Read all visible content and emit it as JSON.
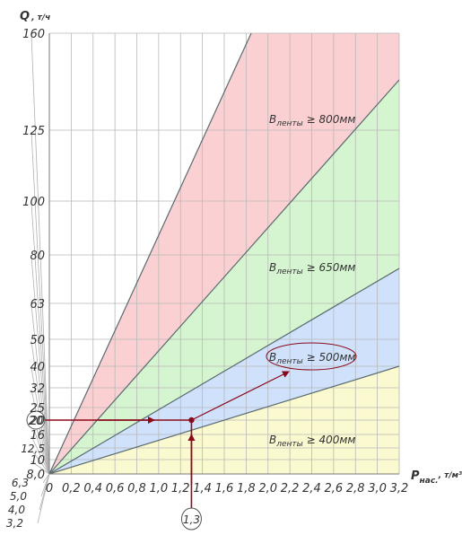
{
  "chart_data": {
    "type": "area",
    "xlabel": "P",
    "xlabel_sub": "нас.",
    "xlabel_unit": ", т/м³",
    "ylabel": "Q",
    "ylabel_unit": ", т/ч",
    "x_ticks": [
      "0",
      "0,2",
      "0,4",
      "0,6",
      "0,8",
      "1,0",
      "1,2",
      "1,4",
      "1,6",
      "1,8",
      "2,0",
      "2,2",
      "2,4",
      "2,6",
      "2,8",
      "3,0",
      "3,2"
    ],
    "x_tick_values": [
      0,
      0.2,
      0.4,
      0.6,
      0.8,
      1.0,
      1.2,
      1.4,
      1.6,
      1.8,
      2.0,
      2.2,
      2.4,
      2.6,
      2.8,
      3.0,
      3.2
    ],
    "y_ticks_main": [
      "160",
      "125",
      "100",
      "80",
      "63",
      "50",
      "40",
      "32",
      "25",
      "20",
      "16",
      "12,5",
      "10",
      "8,0"
    ],
    "y_ticks_fan": [
      "6,3",
      "5,0",
      "4,0",
      "3,2"
    ],
    "xlim": [
      0,
      3.2
    ],
    "grid": true,
    "boundary_lines_Q_at_P_3_2": [
      41,
      75,
      145,
      270
    ],
    "regions": [
      {
        "label_main": "B",
        "label_sub": "ленты",
        "label_tail": " ≥ 800мм",
        "color": "#fbd0d3"
      },
      {
        "label_main": "B",
        "label_sub": "ленты",
        "label_tail": " ≥ 650мм",
        "color": "#d4f5cf"
      },
      {
        "label_main": "B",
        "label_sub": "ленты",
        "label_tail": " ≥ 500мм",
        "color": "#cfe1fb"
      },
      {
        "label_main": "B",
        "label_sub": "ленты",
        "label_tail": " ≥ 400мм",
        "color": "#fbf9cf"
      }
    ],
    "annotation": {
      "x_value": 1.3,
      "x_label": "1,3",
      "y_value": 20,
      "y_label": "20",
      "result": "≥ 500мм"
    }
  }
}
